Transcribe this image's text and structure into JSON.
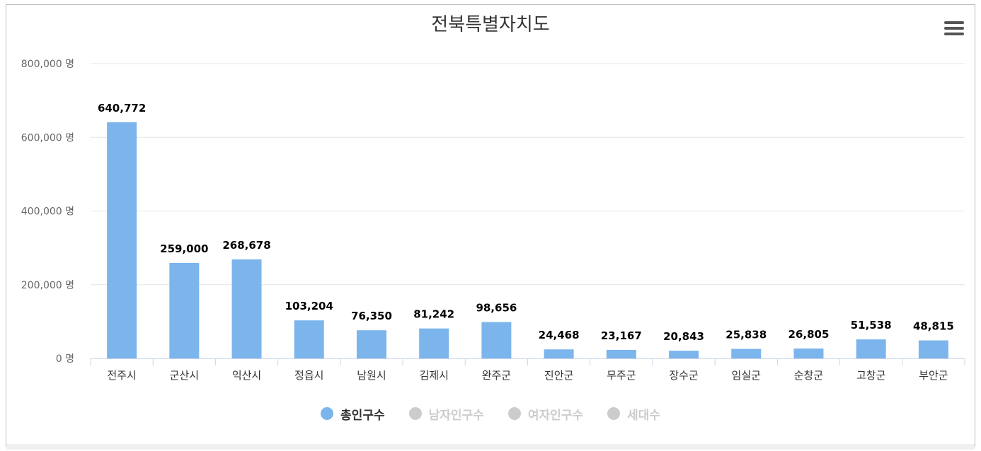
{
  "chart_data": {
    "type": "bar",
    "title": "전북특별자치도",
    "categories": [
      "전주시",
      "군산시",
      "익산시",
      "정읍시",
      "남원시",
      "김제시",
      "완주군",
      "진안군",
      "무주군",
      "장수군",
      "임실군",
      "순창군",
      "고창군",
      "부안군"
    ],
    "values": [
      640772,
      259000,
      268678,
      103204,
      76350,
      81242,
      98656,
      24468,
      23167,
      20843,
      25838,
      26805,
      51538,
      48815
    ],
    "data_labels": [
      "640,772",
      "259,000",
      "268,678",
      "103,204",
      "76,350",
      "81,242",
      "98,656",
      "24,468",
      "23,167",
      "20,843",
      "25,838",
      "26,805",
      "51,538",
      "48,815"
    ],
    "ylim": [
      0,
      800000
    ],
    "yticks": [
      0,
      200000,
      400000,
      600000,
      800000
    ],
    "ytick_labels": [
      "0 명",
      "200,000 명",
      "400,000 명",
      "600,000 명",
      "800,000 명"
    ],
    "grid": true,
    "legend_position": "bottom",
    "legend": [
      {
        "name": "총인구수",
        "color": "#7cb5ec",
        "active": true
      },
      {
        "name": "남자인구수",
        "color": "#cccccc",
        "active": false
      },
      {
        "name": "여자인구수",
        "color": "#cccccc",
        "active": false
      },
      {
        "name": "세대수",
        "color": "#cccccc",
        "active": false
      }
    ],
    "bar_color": "#7cb5ec"
  },
  "menu_icon": "hamburger-menu-icon"
}
